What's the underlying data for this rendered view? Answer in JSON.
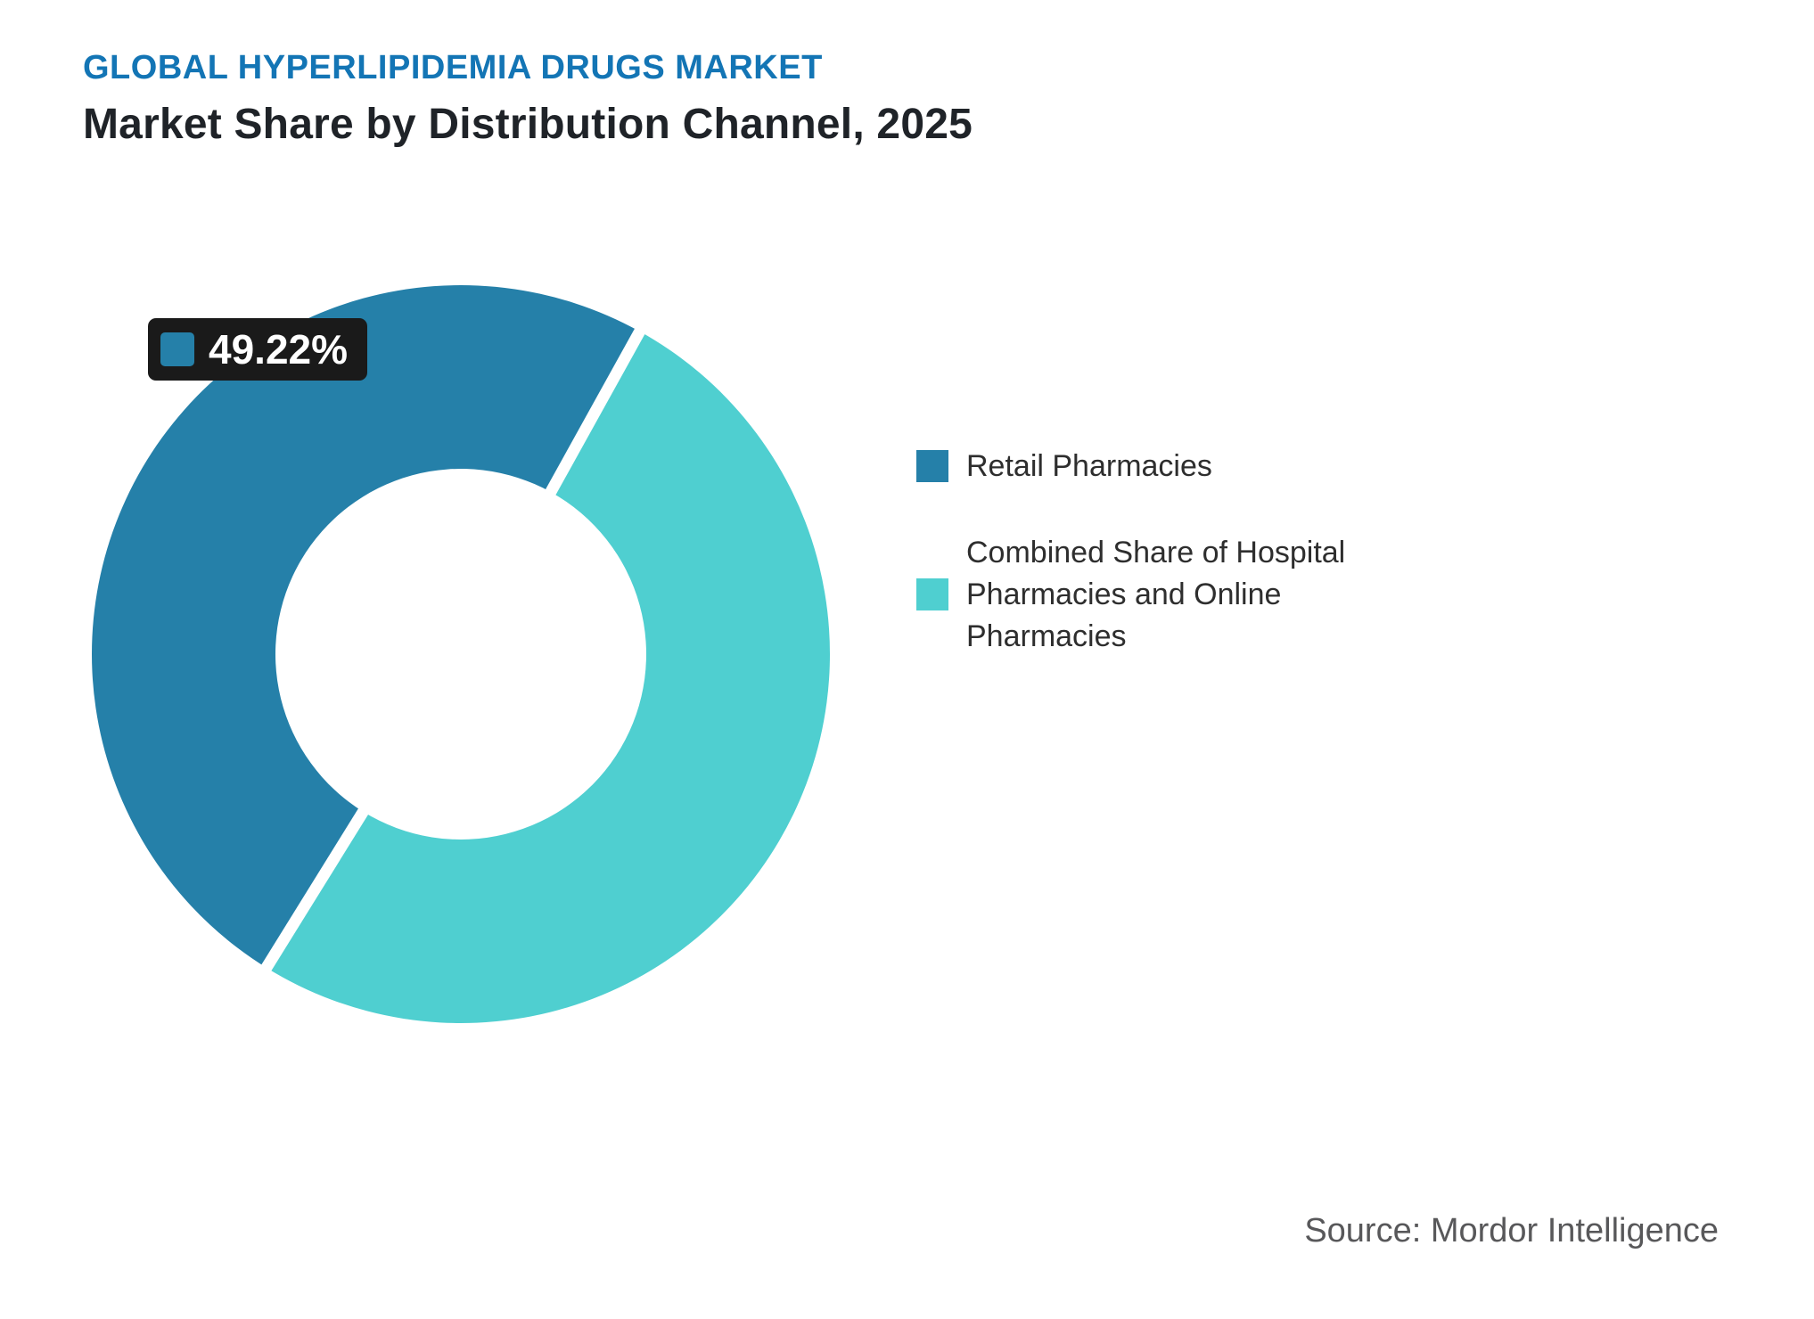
{
  "header": {
    "eyebrow": "GLOBAL HYPERLIPIDEMIA DRUGS MARKET",
    "title": "Market Share by Distribution Channel, 2025"
  },
  "callout": {
    "value": "49.22%"
  },
  "legend": {
    "items": [
      {
        "label_lines": [
          "Retail Pharmacies"
        ]
      },
      {
        "label_lines": [
          "Combined Share of Hospital",
          "Pharmacies and Online",
          "Pharmacies"
        ]
      }
    ]
  },
  "source": {
    "text": "Source: Mordor Intelligence"
  },
  "colors": {
    "accent_title": "#1375b5",
    "callout_bg": "#1a1a1a",
    "legend_text": "#2e2e2e",
    "source_text": "#58585a"
  },
  "chart_data": {
    "type": "pie",
    "donut": true,
    "title": "Market Share by Distribution Channel, 2025",
    "series": [
      {
        "name": "Retail Pharmacies",
        "value": 49.22,
        "color": "#2580a9"
      },
      {
        "name": "Combined Share of Hospital Pharmacies and Online Pharmacies",
        "value": 50.78,
        "color": "#4fcfd0"
      }
    ],
    "data_label": {
      "series": "Retail Pharmacies",
      "text": "49.22%"
    },
    "inner_radius_ratio": 0.5,
    "start_angle_deg": 211.8,
    "legend_position": "right",
    "grid": false
  }
}
